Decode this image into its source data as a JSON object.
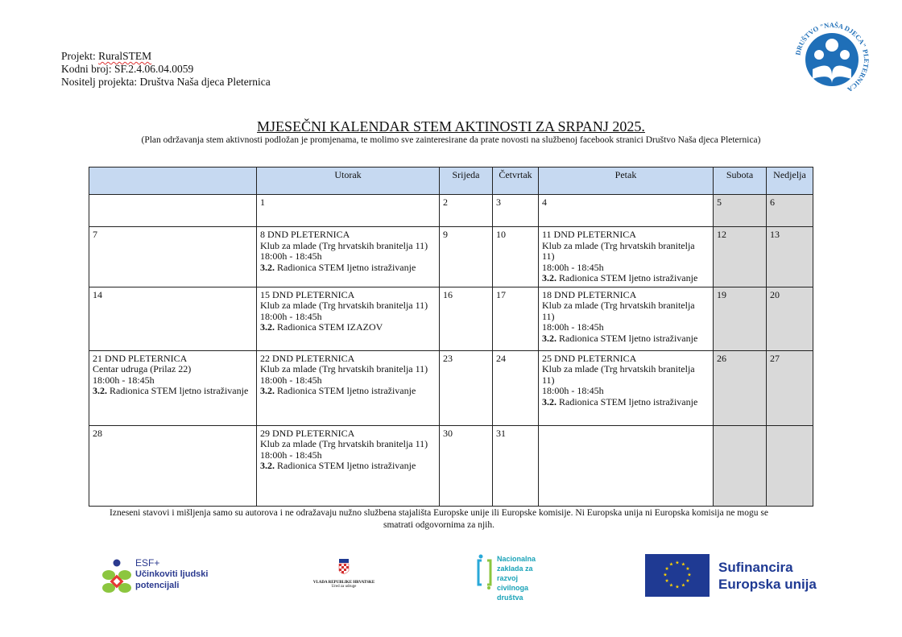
{
  "header": {
    "project_label": "Projekt: ",
    "project_name": "RuralSTEM",
    "code": "Kodni broj: SF.2.4.06.04.0059",
    "holder": "Nositelj projekta: Društva Naša djeca Pleternica",
    "logo_text": "DRUŠTVO \"NAŠA DJECA\" PLETERNICA"
  },
  "title": "MJESEČNI KALENDAR STEM AKTINOSTI ZA SRPANJ 2025.",
  "subtitle": "(Plan održavanja stem aktivnosti podložan je promjenama,  te molimo  sve zainteresirane  da prate novosti na službenoj facebook stranici  Društvo Naša djeca Pleternica)",
  "table": {
    "headers": [
      "",
      "Utorak",
      "Srijeda",
      "Četvrtak",
      "Petak",
      "Subota",
      "Nedjelja"
    ],
    "weeks": [
      [
        {
          "t": ""
        },
        {
          "t": "1"
        },
        {
          "t": "2"
        },
        {
          "t": "3"
        },
        {
          "t": "4"
        },
        {
          "t": "5"
        },
        {
          "t": "6"
        }
      ],
      [
        {
          "t": "7"
        },
        {
          "t": "8  DND PLETERNICA",
          "place": "Klub za mlade (Trg hrvatskih branitelja 11)",
          "time": "18:00h - 18:45h",
          "num": "3.2.",
          "act": " Radionica STEM ljetno istraživanje"
        },
        {
          "t": "9"
        },
        {
          "t": "10"
        },
        {
          "t": "11 DND PLETERNICA",
          "place": "Klub za mlade (Trg hrvatskih branitelja 11)",
          "time": "18:00h - 18:45h",
          "num": "3.2.",
          "act": " Radionica STEM ljetno istraživanje"
        },
        {
          "t": "12"
        },
        {
          "t": "13"
        }
      ],
      [
        {
          "t": "14"
        },
        {
          "t": "15 DND PLETERNICA",
          "place": "Klub za mlade (Trg hrvatskih branitelja 11)",
          "time": "18:00h - 18:45h",
          "num": "3.2.",
          "act": " Radionica STEM IZAZOV"
        },
        {
          "t": "16"
        },
        {
          "t": "17"
        },
        {
          "t": "18 DND PLETERNICA",
          "place": "Klub za mlade (Trg hrvatskih branitelja 11)",
          "time": "18:00h - 18:45h",
          "num": "3.2.",
          "act": " Radionica STEM ljetno istraživanje"
        },
        {
          "t": "19"
        },
        {
          "t": "20"
        }
      ],
      [
        {
          "t": "21 DND PLETERNICA",
          "place": "Centar udruga (Prilaz 22)",
          "time": "18:00h - 18:45h",
          "num": "3.2.",
          "act": " Radionica STEM ljetno istraživanje"
        },
        {
          "t": "22  DND PLETERNICA",
          "place": "Klub za mlade (Trg hrvatskih branitelja 11)",
          "time": "18:00h - 18:45h",
          "num": "3.2.",
          "act": " Radionica STEM ljetno istraživanje"
        },
        {
          "t": "23"
        },
        {
          "t": "24"
        },
        {
          "t": "25 DND PLETERNICA",
          "place": "Klub za mlade (Trg hrvatskih branitelja 11)",
          "time": "18:00h - 18:45h",
          "num": "3.2.",
          "act": " Radionica STEM ljetno istraživanje"
        },
        {
          "t": "26"
        },
        {
          "t": "27"
        }
      ],
      [
        {
          "t": "28"
        },
        {
          "t": "29  DND PLETERNICA",
          "place": "Klub za mlade (Trg hrvatskih branitelja 11)",
          "time": "18:00h - 18:45h",
          "num": "3.2.",
          "act": " Radionica STEM ljetno istraživanje"
        },
        {
          "t": "30"
        },
        {
          "t": "31"
        },
        {
          "t": ""
        },
        {
          "t": ""
        },
        {
          "t": ""
        }
      ]
    ]
  },
  "disclaimer": "Izneseni stavovi i mišljenja samo su autorova i ne odražavaju nužno službena stajališta Europske unije ili Europske komisije.  Ni Europska unija ni Europska komisija ne mogu se smatrati odgovornima za njih.",
  "logos": {
    "esf_top": "ESF+",
    "esf_line1": "Učinkoviti ljudski",
    "esf_line2": "potencijali",
    "gov_line1": "VLADA REPUBLIKE HRVATSKE",
    "gov_line2": "Ured za udruge",
    "nz": [
      "Nacionalna",
      "zaklada za",
      "razvoj",
      "civilnoga",
      "društva"
    ],
    "eu_line1": "Sufinancira",
    "eu_line2": "Europska unija"
  },
  "colors": {
    "header_bg": "#c6d9f1",
    "weekend_bg": "#d9d9d9",
    "eu_blue": "#1f3a93",
    "eu_text": "#1f3a93",
    "logo_blue": "#1f6fb8"
  }
}
